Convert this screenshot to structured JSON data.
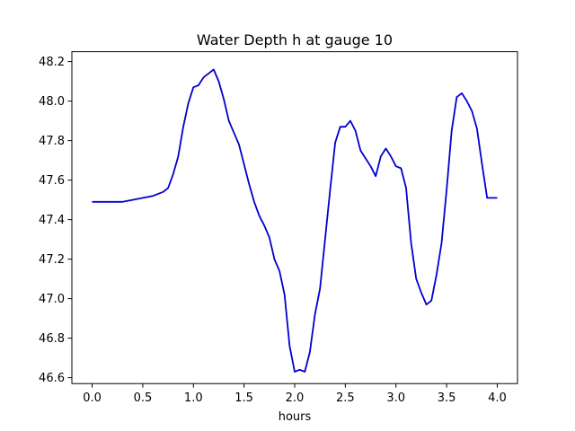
{
  "chart_data": {
    "type": "line",
    "title": "Water Depth h at gauge 10",
    "xlabel": "hours",
    "ylabel": "",
    "xlim": [
      -0.2,
      4.2
    ],
    "ylim": [
      46.57,
      48.25
    ],
    "xticks": [
      0.0,
      0.5,
      1.0,
      1.5,
      2.0,
      2.5,
      3.0,
      3.5,
      4.0
    ],
    "xtick_labels": [
      "0.0",
      "0.5",
      "1.0",
      "1.5",
      "2.0",
      "2.5",
      "3.0",
      "3.5",
      "4.0"
    ],
    "yticks": [
      46.6,
      46.8,
      47.0,
      47.2,
      47.4,
      47.6,
      47.8,
      48.0,
      48.2
    ],
    "ytick_labels": [
      "46.6",
      "46.8",
      "47.0",
      "47.2",
      "47.4",
      "47.6",
      "47.8",
      "48.0",
      "48.2"
    ],
    "grid": false,
    "legend": "none",
    "series": [
      {
        "color": "#0000cc",
        "x": [
          0.0,
          0.1,
          0.2,
          0.3,
          0.4,
          0.5,
          0.6,
          0.7,
          0.75,
          0.8,
          0.85,
          0.9,
          0.95,
          1.0,
          1.05,
          1.1,
          1.15,
          1.2,
          1.25,
          1.3,
          1.35,
          1.4,
          1.45,
          1.5,
          1.55,
          1.6,
          1.65,
          1.7,
          1.75,
          1.8,
          1.85,
          1.9,
          1.95,
          2.0,
          2.05,
          2.1,
          2.15,
          2.2,
          2.25,
          2.3,
          2.35,
          2.4,
          2.45,
          2.5,
          2.55,
          2.6,
          2.65,
          2.7,
          2.75,
          2.8,
          2.85,
          2.9,
          2.95,
          3.0,
          3.05,
          3.1,
          3.15,
          3.2,
          3.25,
          3.3,
          3.35,
          3.4,
          3.45,
          3.5,
          3.55,
          3.6,
          3.65,
          3.7,
          3.75,
          3.8,
          3.85,
          3.9,
          3.95,
          4.0
        ],
        "y": [
          47.49,
          47.49,
          47.49,
          47.49,
          47.5,
          47.51,
          47.52,
          47.54,
          47.56,
          47.63,
          47.72,
          47.87,
          47.99,
          48.07,
          48.08,
          48.12,
          48.14,
          48.16,
          48.1,
          48.01,
          47.9,
          47.84,
          47.78,
          47.68,
          47.58,
          47.49,
          47.42,
          47.37,
          47.31,
          47.2,
          47.14,
          47.02,
          46.76,
          46.63,
          46.64,
          46.63,
          46.73,
          46.92,
          47.05,
          47.3,
          47.55,
          47.79,
          47.87,
          47.87,
          47.9,
          47.85,
          47.75,
          47.71,
          47.67,
          47.62,
          47.72,
          47.76,
          47.72,
          47.67,
          47.66,
          47.56,
          47.28,
          47.1,
          47.03,
          46.97,
          46.99,
          47.12,
          47.28,
          47.55,
          47.85,
          48.02,
          48.04,
          48.0,
          47.95,
          47.86,
          47.68,
          47.51,
          47.51,
          47.51
        ]
      }
    ]
  }
}
